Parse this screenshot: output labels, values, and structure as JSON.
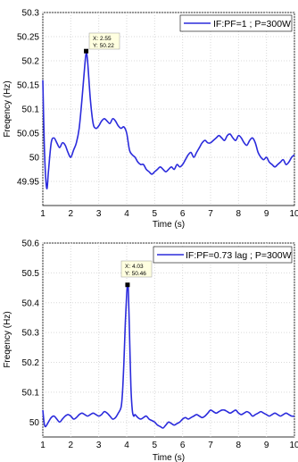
{
  "chart_data": [
    {
      "type": "line",
      "xlabel": "Time (s)",
      "ylabel": "Freqency (Hz)",
      "xlim": [
        1,
        10
      ],
      "ylim": [
        49.9,
        50.3
      ],
      "grid": true,
      "legend_position": "top-right",
      "xticks": [
        "1",
        "2",
        "3",
        "4",
        "5",
        "6",
        "7",
        "8",
        "9",
        "10"
      ],
      "yticks": [
        "49.95",
        "50",
        "50.05",
        "50.1",
        "50.15",
        "50.2",
        "50.25",
        "50.3"
      ],
      "series": [
        {
          "name": "IF:PF=1 ; P=300W",
          "color": "#2b2bdc",
          "x": [
            1.0,
            1.05,
            1.1,
            1.15,
            1.2,
            1.3,
            1.4,
            1.5,
            1.6,
            1.7,
            1.8,
            1.9,
            2.0,
            2.1,
            2.2,
            2.3,
            2.4,
            2.5,
            2.55,
            2.6,
            2.7,
            2.8,
            2.9,
            3.0,
            3.1,
            3.2,
            3.3,
            3.4,
            3.5,
            3.6,
            3.7,
            3.8,
            3.9,
            4.0,
            4.1,
            4.2,
            4.3,
            4.4,
            4.5,
            4.6,
            4.7,
            4.8,
            4.9,
            5.0,
            5.1,
            5.2,
            5.3,
            5.4,
            5.5,
            5.6,
            5.7,
            5.8,
            5.9,
            6.0,
            6.1,
            6.2,
            6.3,
            6.4,
            6.5,
            6.6,
            6.7,
            6.8,
            6.9,
            7.0,
            7.1,
            7.2,
            7.3,
            7.4,
            7.5,
            7.6,
            7.7,
            7.8,
            7.9,
            8.0,
            8.1,
            8.2,
            8.3,
            8.4,
            8.5,
            8.6,
            8.7,
            8.8,
            8.9,
            9.0,
            9.1,
            9.2,
            9.3,
            9.4,
            9.5,
            9.6,
            9.7,
            9.8,
            9.9,
            10.0
          ],
          "y": [
            50.16,
            50.03,
            49.96,
            49.935,
            49.97,
            50.03,
            50.04,
            50.03,
            50.02,
            50.03,
            50.025,
            50.01,
            50.0,
            50.015,
            50.03,
            50.06,
            50.12,
            50.19,
            50.215,
            50.2,
            50.12,
            50.07,
            50.06,
            50.065,
            50.075,
            50.08,
            50.075,
            50.07,
            50.08,
            50.075,
            50.065,
            50.06,
            50.063,
            50.05,
            50.015,
            50.005,
            50.0,
            49.99,
            49.985,
            49.985,
            49.975,
            49.97,
            49.965,
            49.97,
            49.975,
            49.98,
            49.975,
            49.97,
            49.975,
            49.98,
            49.975,
            49.985,
            49.98,
            49.985,
            49.995,
            50.005,
            50.01,
            50.0,
            50.01,
            50.02,
            50.03,
            50.035,
            50.03,
            50.03,
            50.035,
            50.04,
            50.045,
            50.04,
            50.035,
            50.045,
            50.048,
            50.04,
            50.035,
            50.045,
            50.04,
            50.03,
            50.025,
            50.035,
            50.04,
            50.03,
            50.01,
            50.0,
            49.995,
            50.0,
            49.99,
            49.985,
            49.98,
            49.985,
            49.99,
            49.995,
            49.985,
            49.99,
            50.0,
            50.005
          ]
        }
      ],
      "datatip": {
        "x": 2.55,
        "y": 50.22,
        "text_x": "X: 2.55",
        "text_y": "Y: 50.22"
      }
    },
    {
      "type": "line",
      "xlabel": "Time (s)",
      "ylabel": "Freqency (Hz)",
      "xlim": [
        1,
        10
      ],
      "ylim": [
        49.95,
        50.6
      ],
      "grid": true,
      "legend_position": "top-right",
      "xticks": [
        "1",
        "2",
        "3",
        "4",
        "5",
        "6",
        "7",
        "8",
        "9",
        "10"
      ],
      "yticks": [
        "50",
        "50.1",
        "50.2",
        "50.3",
        "50.4",
        "50.5",
        "50.6"
      ],
      "series": [
        {
          "name": "IF:PF=0.73 lag ; P=300W",
          "color": "#2b2bdc",
          "x": [
            1.0,
            1.05,
            1.1,
            1.2,
            1.3,
            1.4,
            1.5,
            1.6,
            1.7,
            1.8,
            1.9,
            2.0,
            2.1,
            2.2,
            2.3,
            2.4,
            2.5,
            2.6,
            2.7,
            2.8,
            2.9,
            3.0,
            3.1,
            3.2,
            3.3,
            3.4,
            3.5,
            3.6,
            3.7,
            3.8,
            3.85,
            3.9,
            3.95,
            4.0,
            4.03,
            4.06,
            4.1,
            4.15,
            4.2,
            4.25,
            4.3,
            4.4,
            4.5,
            4.6,
            4.7,
            4.8,
            4.9,
            5.0,
            5.1,
            5.2,
            5.3,
            5.4,
            5.5,
            5.6,
            5.7,
            5.8,
            5.9,
            6.0,
            6.1,
            6.2,
            6.3,
            6.4,
            6.5,
            6.6,
            6.7,
            6.8,
            6.9,
            7.0,
            7.1,
            7.2,
            7.3,
            7.4,
            7.5,
            7.6,
            7.7,
            7.8,
            7.9,
            8.0,
            8.1,
            8.2,
            8.3,
            8.4,
            8.5,
            8.6,
            8.7,
            8.8,
            8.9,
            9.0,
            9.1,
            9.2,
            9.3,
            9.4,
            9.5,
            9.6,
            9.7,
            9.8,
            9.9,
            10.0
          ],
          "y": [
            50.04,
            49.995,
            49.985,
            50.0,
            50.015,
            50.02,
            50.01,
            50.0,
            50.01,
            50.02,
            50.025,
            50.02,
            50.01,
            50.015,
            50.025,
            50.03,
            50.025,
            50.02,
            50.025,
            50.03,
            50.025,
            50.02,
            50.025,
            50.035,
            50.03,
            50.02,
            50.01,
            50.015,
            50.03,
            50.05,
            50.1,
            50.2,
            50.33,
            50.43,
            50.46,
            50.44,
            50.3,
            50.12,
            50.04,
            50.02,
            50.025,
            50.015,
            50.01,
            50.015,
            50.02,
            50.01,
            50.005,
            50.0,
            49.99,
            49.985,
            49.98,
            49.99,
            50.0,
            49.995,
            49.99,
            49.995,
            50.0,
            50.01,
            50.015,
            50.01,
            50.015,
            50.02,
            50.025,
            50.02,
            50.015,
            50.02,
            50.03,
            50.04,
            50.035,
            50.03,
            50.035,
            50.04,
            50.04,
            50.035,
            50.03,
            50.035,
            50.04,
            50.03,
            50.025,
            50.03,
            50.035,
            50.03,
            50.02,
            50.025,
            50.03,
            50.035,
            50.03,
            50.025,
            50.02,
            50.025,
            50.03,
            50.025,
            50.02,
            50.025,
            50.03,
            50.025,
            50.02,
            50.02
          ]
        }
      ],
      "datatip": {
        "x": 4.03,
        "y": 50.46,
        "text_x": "X: 4.03",
        "text_y": "Y: 50.46"
      }
    }
  ]
}
